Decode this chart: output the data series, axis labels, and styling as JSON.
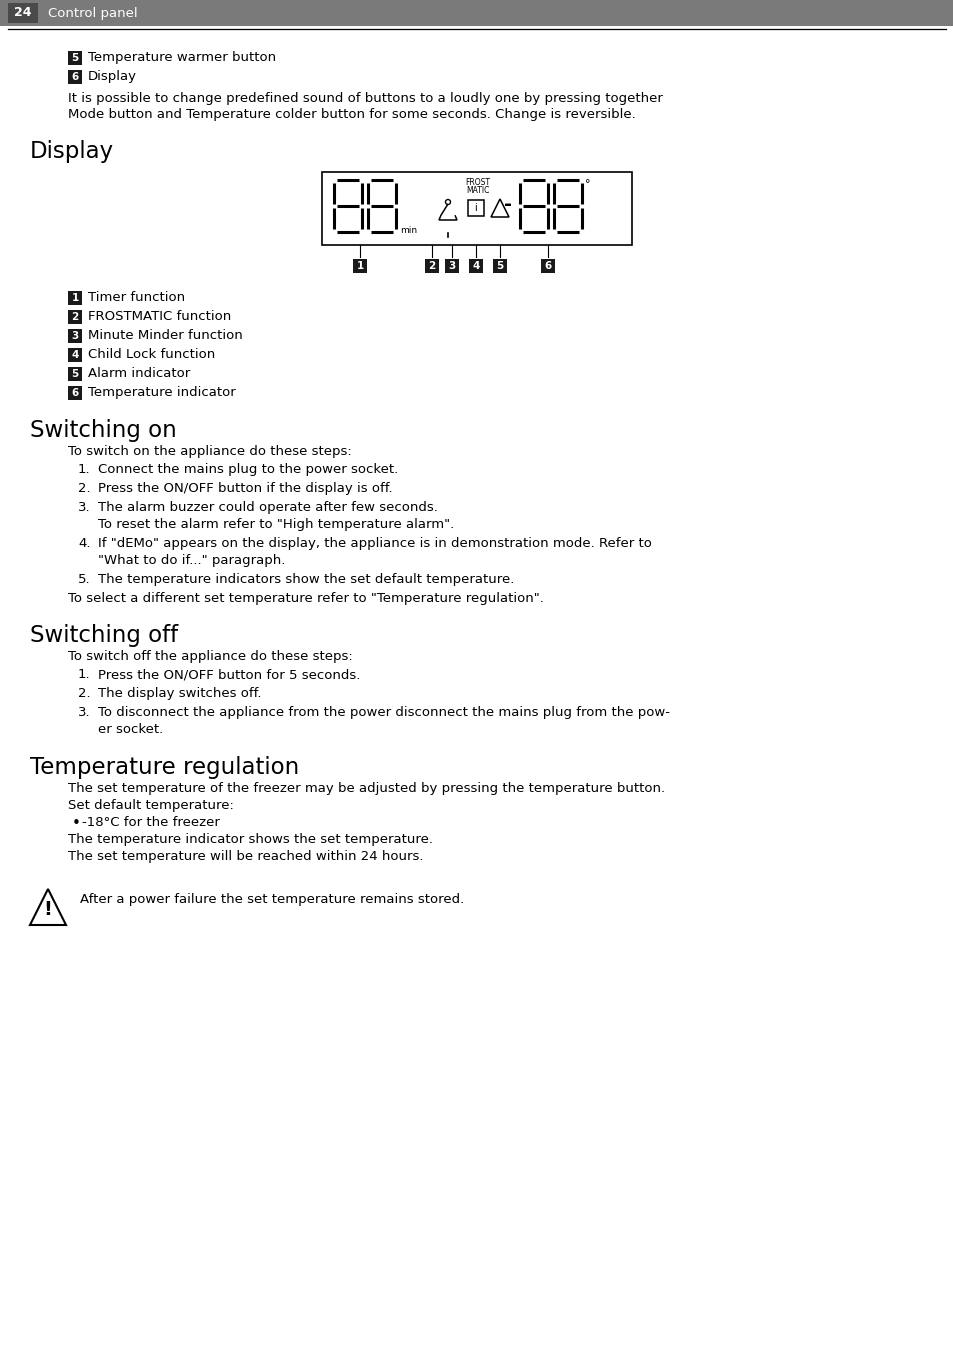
{
  "page_number": "24",
  "page_header": "Control panel",
  "background_color": "#ffffff",
  "text_color": "#000000",
  "header_bg": "#7a7a7a",
  "badge_bg": "#1a1a1a",
  "badge_text": "#ffffff",
  "body_font_size": 9.5,
  "section_font_size": 16,
  "header_font_size": 10,
  "intro_items": [
    {
      "badge": "5",
      "text": "Temperature warmer button"
    },
    {
      "badge": "6",
      "text": "Display"
    }
  ],
  "intro_paragraph": "It is possible to change predefined sound of buttons to a loudly one by pressing together\nMode button and Temperature colder button for some seconds. Change is reversible.",
  "section1_title": "Display",
  "display_items": [
    {
      "badge": "1",
      "text": "Timer function"
    },
    {
      "badge": "2",
      "text": "FROSTMATIC function"
    },
    {
      "badge": "3",
      "text": "Minute Minder function"
    },
    {
      "badge": "4",
      "text": "Child Lock function"
    },
    {
      "badge": "5",
      "text": "Alarm indicator"
    },
    {
      "badge": "6",
      "text": "Temperature indicator"
    }
  ],
  "section2_title": "Switching on",
  "switching_on_intro": "To switch on the appliance do these steps:",
  "switching_on_items": [
    {
      "num": "1.",
      "text": "Connect the mains plug to the power socket.",
      "sub": ""
    },
    {
      "num": "2.",
      "text": "Press the ON/OFF button if the display is off.",
      "sub": ""
    },
    {
      "num": "3.",
      "text": "The alarm buzzer could operate after few seconds.",
      "sub": "To reset the alarm refer to \"High temperature alarm\"."
    },
    {
      "num": "4.",
      "text": "If \"dEMo\" appears on the display, the appliance is in demonstration mode. Refer to",
      "sub": "\"What to do if...\" paragraph."
    },
    {
      "num": "5.",
      "text": "The temperature indicators show the set default temperature.",
      "sub": ""
    }
  ],
  "switching_on_footer": "To select a different set temperature refer to \"Temperature regulation\".",
  "section3_title": "Switching off",
  "switching_off_intro": "To switch off the appliance do these steps:",
  "switching_off_items": [
    {
      "num": "1.",
      "text": "Press the ON/OFF button for 5 seconds.",
      "sub": ""
    },
    {
      "num": "2.",
      "text": "The display switches off.",
      "sub": ""
    },
    {
      "num": "3.",
      "text": "To disconnect the appliance from the power disconnect the mains plug from the pow-",
      "sub": "er socket."
    }
  ],
  "section4_title": "Temperature regulation",
  "temp_reg_para1": "The set temperature of the freezer may be adjusted by pressing the temperature button.",
  "temp_reg_para1b": "Set default temperature:",
  "temp_reg_bullet": "-18°C for the freezer",
  "temp_reg_para2": "The temperature indicator shows the set temperature.",
  "temp_reg_para3": "The set temperature will be reached within 24 hours.",
  "warning_text": "After a power failure the set temperature remains stored."
}
